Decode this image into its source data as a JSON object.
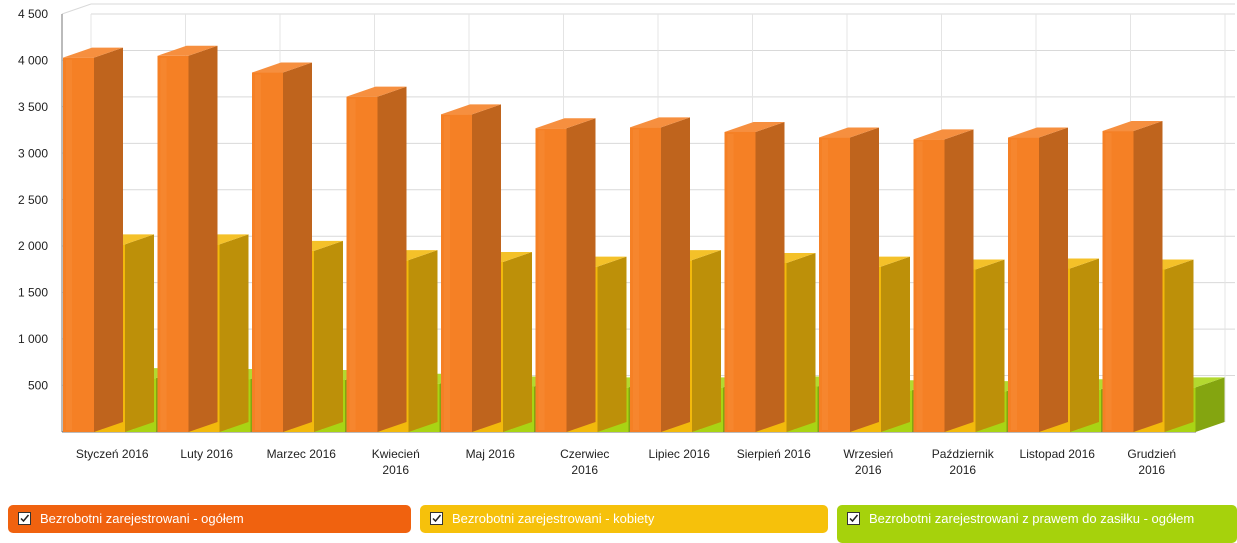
{
  "chart_data": {
    "type": "bar",
    "categories": [
      "Styczeń 2016",
      "Luty 2016",
      "Marzec 2016",
      "Kwiecień 2016",
      "Maj 2016",
      "Czerwiec 2016",
      "Lipiec 2016",
      "Sierpień 2016",
      "Wrzesień 2016",
      "Październik 2016",
      "Listopad 2016",
      "Grudzień 2016"
    ],
    "series": [
      {
        "name": "Bezrobotni zarejestrowani - ogółem",
        "values": [
          4030,
          4050,
          3870,
          3610,
          3420,
          3270,
          3280,
          3230,
          3170,
          3150,
          3170,
          3240
        ],
        "color": "#f58025"
      },
      {
        "name": "Bezrobotni zarejestrowani - kobiety",
        "values": [
          2020,
          2020,
          1950,
          1850,
          1830,
          1780,
          1850,
          1820,
          1780,
          1750,
          1760,
          1750
        ],
        "color": "#f2b90c"
      },
      {
        "name": "Bezrobotni zarejestrowani z prawem do zasiłku - ogółem",
        "values": [
          580,
          570,
          560,
          520,
          490,
          480,
          480,
          490,
          450,
          440,
          460,
          480
        ],
        "color": "#a9d414"
      }
    ],
    "y_ticks": [
      "500",
      "1 000",
      "1 500",
      "2 000",
      "2 500",
      "3 000",
      "3 500",
      "4 000",
      "4 500"
    ],
    "ylim": [
      0,
      4500
    ],
    "grid": true,
    "legend_position": "bottom"
  }
}
